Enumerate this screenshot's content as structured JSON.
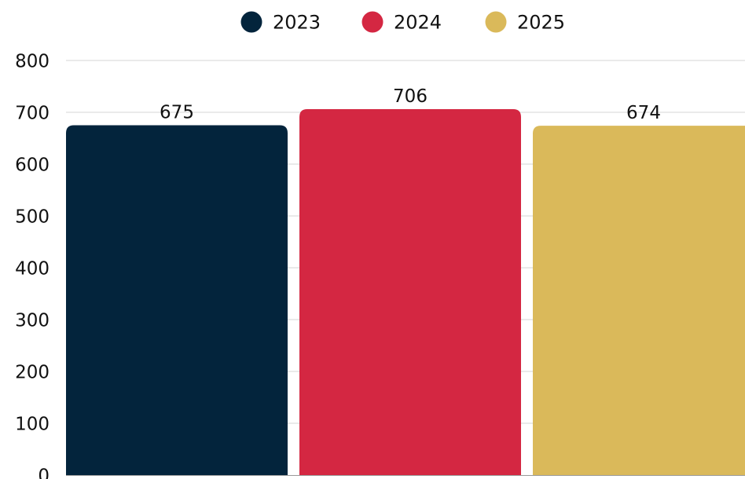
{
  "chart_data": {
    "type": "bar",
    "title": "",
    "xlabel": "",
    "ylabel": "",
    "ylim": [
      0,
      800
    ],
    "yticks": [
      0,
      100,
      200,
      300,
      400,
      500,
      600,
      700,
      800
    ],
    "grid": true,
    "legend_position": "top-center",
    "series": [
      {
        "name": "2023",
        "value": 675,
        "color": "#03243c"
      },
      {
        "name": "2024",
        "value": 706,
        "color": "#d42742"
      },
      {
        "name": "2025",
        "value": 674,
        "color": "#dab95a"
      }
    ]
  }
}
